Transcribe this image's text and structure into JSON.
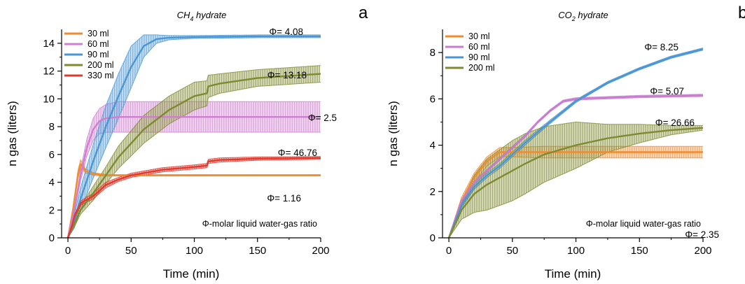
{
  "chart_data": [
    {
      "type": "line",
      "panel_letter": "a",
      "title": "CH4 hydrate",
      "title_main": "CH",
      "title_sub": "4",
      "title_rest": " hydrate",
      "xlabel": "Time (min)",
      "ylabel": "n gas (liters)",
      "xlim": [
        -5,
        200
      ],
      "ylim": [
        0,
        15
      ],
      "xticks": [
        0,
        50,
        100,
        150,
        200
      ],
      "yticks": [
        0,
        2,
        4,
        6,
        8,
        10,
        12,
        14
      ],
      "grid": false,
      "legend_position": "top-left",
      "note": "Φ-molar liquid water-gas ratio",
      "series": [
        {
          "name": "30 ml",
          "color": "#f28a2e",
          "x": [
            0,
            4,
            8,
            10,
            12,
            14,
            20,
            30,
            50,
            100,
            150,
            200
          ],
          "y": [
            0,
            2,
            4.6,
            5.3,
            5.1,
            4.8,
            4.6,
            4.5,
            4.5,
            4.5,
            4.5,
            4.5
          ],
          "err": [
            0,
            0.2,
            0.3,
            0.3,
            0.2,
            0.15,
            0.1,
            0.05,
            0.05,
            0.05,
            0.05,
            0.05
          ],
          "annotation": "Φ= 1.16"
        },
        {
          "name": "60 ml",
          "color": "#cf7fcf",
          "x": [
            0,
            5,
            10,
            15,
            20,
            25,
            30,
            40,
            50,
            75,
            100,
            150,
            200
          ],
          "y": [
            0,
            2,
            4.5,
            6.5,
            7.8,
            8.4,
            8.6,
            8.7,
            8.7,
            8.7,
            8.7,
            8.7,
            8.7
          ],
          "err": [
            0,
            0.1,
            0.4,
            0.6,
            0.8,
            0.9,
            1.0,
            1.1,
            1.1,
            1.1,
            1.1,
            1.1,
            1.1
          ],
          "annotation": "Φ= 2.5"
        },
        {
          "name": "90 ml",
          "color": "#4a96d4",
          "x": [
            0,
            5,
            10,
            20,
            30,
            40,
            50,
            60,
            70,
            80,
            100,
            150,
            200
          ],
          "y": [
            0,
            1.2,
            2.8,
            5.5,
            8,
            10.2,
            12.3,
            13.8,
            14.3,
            14.4,
            14.45,
            14.5,
            14.5
          ],
          "err": [
            0,
            0.5,
            0.8,
            1.2,
            1.5,
            1.6,
            1.5,
            0.8,
            0.3,
            0.15,
            0.1,
            0.1,
            0.1
          ],
          "annotation": "Φ= 4.08"
        },
        {
          "name": "200 ml",
          "color": "#7f8a30",
          "x": [
            0,
            5,
            10,
            20,
            30,
            40,
            50,
            60,
            80,
            100,
            110,
            111,
            120,
            150,
            200
          ],
          "y": [
            0,
            1,
            2,
            3.2,
            4.5,
            5.8,
            6.8,
            7.8,
            9.2,
            10.2,
            10.4,
            10.9,
            11.1,
            11.5,
            11.8
          ],
          "err": [
            0,
            0.2,
            0.3,
            0.5,
            0.6,
            0.8,
            0.9,
            1.0,
            1.0,
            1.0,
            0.9,
            0.8,
            0.7,
            0.6,
            0.6
          ],
          "annotation": "Φ= 13.18"
        },
        {
          "name": "330 ml",
          "color": "#e03a2e",
          "x": [
            0,
            3,
            5,
            10,
            20,
            25,
            30,
            40,
            50,
            75,
            100,
            110,
            111,
            120,
            150,
            200
          ],
          "y": [
            0,
            0.8,
            1.5,
            2.5,
            3.0,
            3.4,
            3.8,
            4.2,
            4.5,
            4.9,
            5.1,
            5.2,
            5.5,
            5.6,
            5.7,
            5.75
          ],
          "err": [
            0,
            0.1,
            0.15,
            0.15,
            0.2,
            0.2,
            0.2,
            0.15,
            0.15,
            0.15,
            0.15,
            0.15,
            0.15,
            0.15,
            0.12,
            0.1
          ],
          "annotation": "Φ= 46.76"
        }
      ]
    },
    {
      "type": "line",
      "panel_letter": "b",
      "title": "CO2 hydrate",
      "title_main": "CO",
      "title_sub": "2",
      "title_rest": " hydrate",
      "xlabel": "Time (min)",
      "ylabel": "n gas (liters)",
      "xlim": [
        -5,
        200
      ],
      "ylim": [
        0,
        9
      ],
      "xticks": [
        0,
        50,
        100,
        150,
        200
      ],
      "yticks": [
        0,
        2,
        4,
        6,
        8
      ],
      "grid": false,
      "legend_position": "top-left",
      "note": "Φ-molar liquid water-gas ratio",
      "series": [
        {
          "name": "30 ml",
          "color": "#f28a2e",
          "x": [
            0,
            5,
            10,
            20,
            30,
            40,
            50,
            75,
            100,
            150,
            200
          ],
          "y": [
            0,
            0.8,
            1.6,
            2.6,
            3.3,
            3.7,
            3.7,
            3.7,
            3.7,
            3.7,
            3.7
          ],
          "err": [
            0,
            0.1,
            0.15,
            0.2,
            0.2,
            0.2,
            0.2,
            0.25,
            0.25,
            0.25,
            0.25
          ],
          "annotation": "Φ= 2.35"
        },
        {
          "name": "60 ml",
          "color": "#c77ccf",
          "x": [
            0,
            5,
            10,
            20,
            30,
            40,
            50,
            60,
            70,
            80,
            90,
            100,
            125,
            150,
            200
          ],
          "y": [
            0,
            0.8,
            1.6,
            2.4,
            2.9,
            3.4,
            3.9,
            4.4,
            5.0,
            5.5,
            5.9,
            6.0,
            6.05,
            6.1,
            6.15
          ],
          "err": [
            0,
            0.05,
            0.05,
            0.05,
            0.05,
            0.05,
            0.05,
            0.05,
            0.05,
            0.05,
            0.05,
            0.05,
            0.05,
            0.05,
            0.05
          ],
          "annotation": "Φ= 5.07"
        },
        {
          "name": "90 ml",
          "color": "#4a96d4",
          "x": [
            0,
            5,
            10,
            20,
            30,
            40,
            50,
            60,
            75,
            100,
            125,
            150,
            175,
            200
          ],
          "y": [
            0,
            0.7,
            1.4,
            2.2,
            2.7,
            3.1,
            3.6,
            4.1,
            4.8,
            5.9,
            6.7,
            7.3,
            7.8,
            8.15
          ],
          "err": [
            0,
            0.1,
            0.1,
            0.1,
            0.1,
            0.1,
            0.1,
            0.1,
            0.08,
            0.06,
            0.05,
            0.05,
            0.05,
            0.05
          ],
          "annotation": "Φ= 8.25"
        },
        {
          "name": "200 ml",
          "color": "#7f8a30",
          "x": [
            0,
            5,
            10,
            20,
            30,
            40,
            50,
            60,
            75,
            100,
            125,
            150,
            175,
            200
          ],
          "y": [
            0,
            0.6,
            1.2,
            1.9,
            2.3,
            2.6,
            2.9,
            3.2,
            3.6,
            4.0,
            4.3,
            4.5,
            4.65,
            4.75
          ],
          "err": [
            0,
            0.2,
            0.4,
            0.8,
            1.1,
            1.2,
            1.3,
            1.3,
            1.2,
            1.0,
            0.6,
            0.4,
            0.2,
            0.1
          ],
          "annotation": "Φ= 26.66"
        }
      ]
    }
  ]
}
